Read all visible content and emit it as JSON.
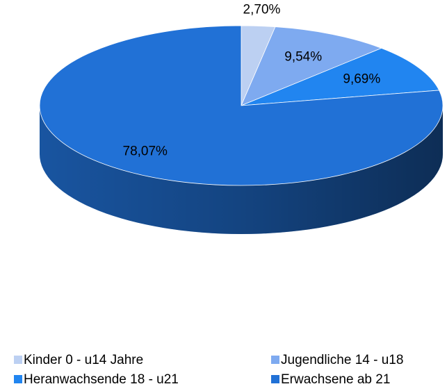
{
  "chart_data": {
    "type": "pie",
    "categories": [
      "Kinder 0 - u14 Jahre",
      "Jugendliche 14 - u18",
      "Heranwachsende 18 - u21",
      "Erwachsene ab 21"
    ],
    "values": [
      2.7,
      9.54,
      9.69,
      78.07
    ],
    "value_labels": [
      "2,70%",
      "9,54%",
      "9,69%",
      "78,07%"
    ],
    "colors": [
      "#bcd0f2",
      "#7eaaf0",
      "#2185f0",
      "#2171d6"
    ],
    "legend": "bottom"
  }
}
